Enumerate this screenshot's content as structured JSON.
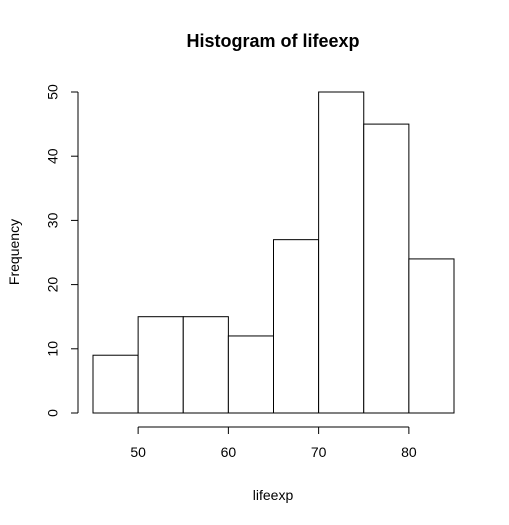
{
  "chart_data": {
    "type": "bar",
    "title": "Histogram of lifeexp",
    "xlabel": "lifeexp",
    "ylabel": "Frequency",
    "bins": [
      {
        "from": 45,
        "to": 50,
        "count": 9
      },
      {
        "from": 50,
        "to": 55,
        "count": 15
      },
      {
        "from": 55,
        "to": 60,
        "count": 15
      },
      {
        "from": 60,
        "to": 65,
        "count": 12
      },
      {
        "from": 65,
        "to": 70,
        "count": 27
      },
      {
        "from": 70,
        "to": 75,
        "count": 50
      },
      {
        "from": 75,
        "to": 80,
        "count": 45
      },
      {
        "from": 80,
        "to": 85,
        "count": 24
      }
    ],
    "xlim": [
      45,
      85
    ],
    "ylim": [
      0,
      50
    ],
    "xticks": [
      50,
      60,
      70,
      80
    ],
    "yticks": [
      0,
      10,
      20,
      30,
      40,
      50
    ],
    "grid": false,
    "bar_fill": "#ffffff",
    "bar_stroke": "#000000"
  }
}
